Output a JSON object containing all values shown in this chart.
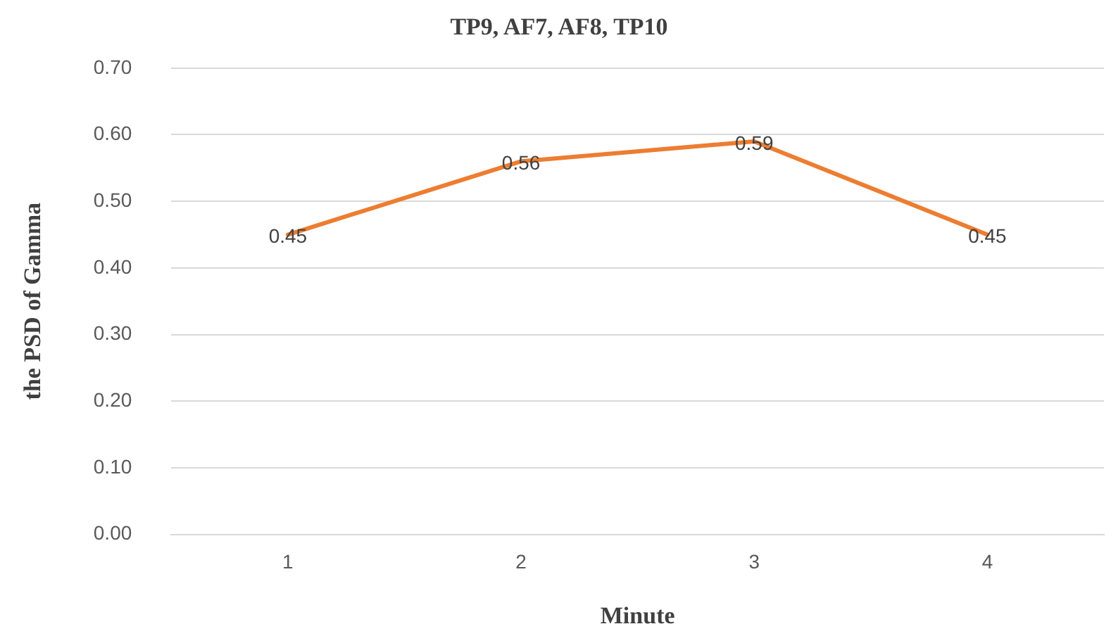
{
  "chart_data": {
    "type": "line",
    "title": "TP9, AF7, AF8, TP10",
    "xlabel": "Minute",
    "ylabel": "the PSD of Gamma",
    "categories": [
      "1",
      "2",
      "3",
      "4"
    ],
    "series": [
      {
        "color": "#ed7d31",
        "values": [
          0.45,
          0.56,
          0.59,
          0.45
        ]
      }
    ],
    "ylim": [
      0,
      0.7
    ],
    "yticks": [
      {
        "value": 0,
        "label": "0.00"
      },
      {
        "value": 0.1,
        "label": "0.10"
      },
      {
        "value": 0.2,
        "label": "0.20"
      },
      {
        "value": 0.3,
        "label": "0.30"
      },
      {
        "value": 0.4,
        "label": "0.40"
      },
      {
        "value": 0.5,
        "label": "0.50"
      },
      {
        "value": 0.6,
        "label": "0.60"
      },
      {
        "value": 0.7,
        "label": "0.70"
      }
    ],
    "grid": "y",
    "data_labels": true,
    "legend": false,
    "marker": "none",
    "line_style": "solid"
  }
}
